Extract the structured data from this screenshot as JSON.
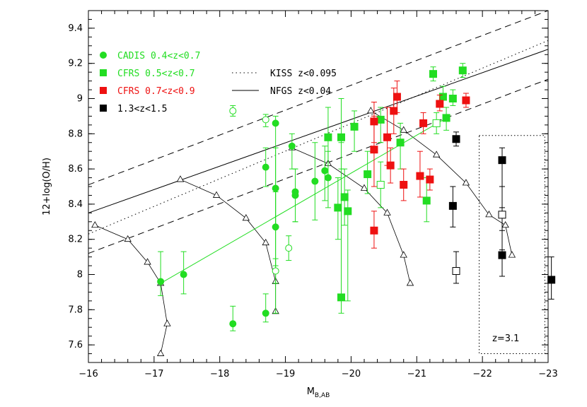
{
  "chart_data": {
    "type": "scatter",
    "xlabel": "M",
    "xlabel_sub": "B,AB",
    "ylabel": "12+log(O/H)",
    "xlim": [
      -16,
      -23
    ],
    "ylim": [
      7.5,
      9.5
    ],
    "xticks": [
      -16,
      -17,
      -18,
      -19,
      -20,
      -21,
      -22,
      -23
    ],
    "xtick_labels": [
      "−16",
      "−17",
      "−18",
      "−19",
      "−20",
      "−21",
      "−22",
      "−23"
    ],
    "yticks": [
      7.6,
      7.8,
      8,
      8.2,
      8.4,
      8.6,
      8.8,
      9,
      9.2,
      9.4
    ],
    "ytick_labels": [
      "7.6",
      "7.8",
      "8",
      "8.2",
      "8.4",
      "8.6",
      "8.8",
      "9",
      "9.2",
      "9.4"
    ],
    "colors": {
      "green": "#22dd22",
      "red": "#ee1111",
      "black": "#000000"
    },
    "legend": [
      {
        "label": "CADIS  0.4<z<0.7",
        "marker": "circle",
        "color": "#22dd22"
      },
      {
        "label": "CFRS  0.5<z<0.7",
        "marker": "square",
        "color": "#22dd22"
      },
      {
        "label": "CFRS  0.7<z<0.9",
        "marker": "square",
        "color": "#ee1111"
      },
      {
        "label": "1.3<z<1.5",
        "marker": "square",
        "color": "#000000"
      }
    ],
    "line_legend": [
      {
        "label": "KISS  z<0.095",
        "style": "dotted"
      },
      {
        "label": "NFGS  z<0.04",
        "style": "solid"
      }
    ],
    "annotation": "z=3.1",
    "reference_lines": [
      {
        "name": "NFGS",
        "style": "solid",
        "x": [
          -16,
          -23
        ],
        "y": [
          8.35,
          9.28
        ]
      },
      {
        "name": "KISS",
        "style": "dotted",
        "x": [
          -16,
          -23
        ],
        "y": [
          8.23,
          9.33
        ]
      },
      {
        "name": "upper-envelope",
        "style": "dashed",
        "x": [
          -16,
          -23
        ],
        "y": [
          8.51,
          9.5
        ]
      },
      {
        "name": "lower-envelope",
        "style": "dashed",
        "x": [
          -16,
          -23
        ],
        "y": [
          8.12,
          9.11
        ]
      }
    ],
    "fit_line": {
      "x": [
        -17.1,
        -21.5
      ],
      "y": [
        7.95,
        8.9
      ],
      "color": "#22dd22"
    },
    "model_tracks": [
      {
        "x": [
          -16.1,
          -16.6,
          -16.9,
          -17.1,
          -17.2,
          -17.1
        ],
        "y": [
          8.28,
          8.2,
          8.07,
          7.95,
          7.72,
          7.55
        ]
      },
      {
        "x": [
          -17.4,
          -17.95,
          -18.4,
          -18.7,
          -18.85,
          -18.85
        ],
        "y": [
          8.54,
          8.45,
          8.32,
          8.18,
          7.96,
          7.79
        ]
      },
      {
        "x": [
          -19.1,
          -19.65,
          -20.2,
          -20.55,
          -20.8,
          -20.9
        ],
        "y": [
          8.72,
          8.63,
          8.49,
          8.35,
          8.11,
          7.95
        ]
      },
      {
        "x": [
          -20.3,
          -20.8,
          -21.3,
          -21.75,
          -22.1,
          -22.35,
          -22.45
        ],
        "y": [
          8.93,
          8.82,
          8.68,
          8.52,
          8.34,
          8.28,
          8.11
        ]
      }
    ],
    "series": [
      {
        "name": "CADIS filled",
        "marker": "circle",
        "filled": true,
        "color": "#22dd22",
        "points": [
          {
            "x": -17.1,
            "y": 7.96,
            "lo": 7.88,
            "hi": 8.13
          },
          {
            "x": -17.45,
            "y": 8.0,
            "lo": 7.89,
            "hi": 8.13
          },
          {
            "x": -18.2,
            "y": 7.72,
            "lo": 7.68,
            "hi": 7.82
          },
          {
            "x": -18.7,
            "y": 7.78,
            "lo": 7.73,
            "hi": 7.89
          },
          {
            "x": -18.7,
            "y": 8.61,
            "lo": 8.5,
            "hi": 8.72
          },
          {
            "x": -18.85,
            "y": 8.86,
            "lo": 7.78,
            "hi": 8.9
          },
          {
            "x": -18.85,
            "y": 8.49,
            "lo": 8.27,
            "hi": 8.72
          },
          {
            "x": -18.85,
            "y": 8.27,
            "lo": 8.05,
            "hi": 8.47
          },
          {
            "x": -19.1,
            "y": 8.73,
            "lo": 8.6,
            "hi": 8.8
          },
          {
            "x": -19.15,
            "y": 8.47,
            "lo": 8.3,
            "hi": 8.6
          },
          {
            "x": -19.15,
            "y": 8.45,
            "lo": 8.3,
            "hi": 8.6
          },
          {
            "x": -19.45,
            "y": 8.53,
            "lo": 8.31,
            "hi": 8.75
          },
          {
            "x": -19.6,
            "y": 8.59,
            "lo": 8.42,
            "hi": 8.73
          },
          {
            "x": -19.65,
            "y": 8.55,
            "lo": 8.38,
            "hi": 8.7
          }
        ]
      },
      {
        "name": "CADIS open",
        "marker": "circle",
        "filled": false,
        "color": "#22dd22",
        "points": [
          {
            "x": -18.2,
            "y": 8.93,
            "lo": 8.9,
            "hi": 8.96
          },
          {
            "x": -18.7,
            "y": 8.88,
            "lo": 8.84,
            "hi": 8.91
          },
          {
            "x": -18.85,
            "y": 8.02,
            "lo": 7.95,
            "hi": 8.09
          },
          {
            "x": -19.05,
            "y": 8.15,
            "lo": 8.08,
            "hi": 8.22
          }
        ]
      },
      {
        "name": "CFRS 0.5<z<0.7",
        "marker": "square",
        "filled": true,
        "color": "#22dd22",
        "points": [
          {
            "x": -19.65,
            "y": 8.78,
            "lo": 8.55,
            "hi": 8.95
          },
          {
            "x": -19.8,
            "y": 8.38,
            "lo": 8.2,
            "hi": 8.55
          },
          {
            "x": -19.85,
            "y": 8.78,
            "lo": 8.6,
            "hi": 9.0
          },
          {
            "x": -19.85,
            "y": 7.87,
            "lo": 7.78,
            "hi": 8.75
          },
          {
            "x": -19.9,
            "y": 8.44,
            "lo": 8.28,
            "hi": 8.6
          },
          {
            "x": -19.95,
            "y": 8.36,
            "lo": 7.85,
            "hi": 8.48
          },
          {
            "x": -20.05,
            "y": 8.84,
            "lo": 8.7,
            "hi": 8.93
          },
          {
            "x": -20.25,
            "y": 8.57,
            "lo": 8.46,
            "hi": 8.7
          },
          {
            "x": -20.45,
            "y": 8.88,
            "lo": 8.75,
            "hi": 8.95
          },
          {
            "x": -20.75,
            "y": 8.75,
            "lo": 8.6,
            "hi": 8.86
          },
          {
            "x": -21.15,
            "y": 8.42,
            "lo": 8.3,
            "hi": 8.55
          },
          {
            "x": -21.25,
            "y": 9.14,
            "lo": 9.1,
            "hi": 9.18
          },
          {
            "x": -21.4,
            "y": 9.01,
            "lo": 8.95,
            "hi": 9.07
          },
          {
            "x": -21.45,
            "y": 8.89,
            "lo": 8.82,
            "hi": 8.95
          },
          {
            "x": -21.55,
            "y": 9.0,
            "lo": 8.96,
            "hi": 9.05
          },
          {
            "x": -21.7,
            "y": 9.16,
            "lo": 9.12,
            "hi": 9.2
          }
        ]
      },
      {
        "name": "CFRS 0.5<z<0.7 open",
        "marker": "square",
        "filled": false,
        "color": "#22dd22",
        "points": [
          {
            "x": -20.45,
            "y": 8.51,
            "lo": 8.38,
            "hi": 8.64
          },
          {
            "x": -21.3,
            "y": 8.86,
            "lo": 8.8,
            "hi": 8.92
          }
        ]
      },
      {
        "name": "CFRS 0.7<z<0.9",
        "marker": "square",
        "filled": true,
        "color": "#ee1111",
        "points": [
          {
            "x": -20.35,
            "y": 8.87,
            "lo": 8.75,
            "hi": 8.98
          },
          {
            "x": -20.35,
            "y": 8.71,
            "lo": 8.5,
            "hi": 8.9
          },
          {
            "x": -20.35,
            "y": 8.25,
            "lo": 8.15,
            "hi": 8.36
          },
          {
            "x": -20.55,
            "y": 8.78,
            "lo": 8.62,
            "hi": 8.95
          },
          {
            "x": -20.6,
            "y": 8.62,
            "lo": 8.52,
            "hi": 8.72
          },
          {
            "x": -20.65,
            "y": 8.93,
            "lo": 8.8,
            "hi": 9.06
          },
          {
            "x": -20.7,
            "y": 9.01,
            "lo": 8.92,
            "hi": 9.1
          },
          {
            "x": -20.8,
            "y": 8.51,
            "lo": 8.42,
            "hi": 8.6
          },
          {
            "x": -21.05,
            "y": 8.56,
            "lo": 8.44,
            "hi": 8.7
          },
          {
            "x": -21.1,
            "y": 8.86,
            "lo": 8.8,
            "hi": 8.92
          },
          {
            "x": -21.2,
            "y": 8.54,
            "lo": 8.48,
            "hi": 8.6
          },
          {
            "x": -21.35,
            "y": 8.97,
            "lo": 8.93,
            "hi": 9.02
          },
          {
            "x": -21.75,
            "y": 8.99,
            "lo": 8.95,
            "hi": 9.03
          }
        ]
      },
      {
        "name": "1.3<z<1.5",
        "marker": "square",
        "filled": true,
        "color": "#000000",
        "points": [
          {
            "x": -21.55,
            "y": 8.39,
            "lo": 8.27,
            "hi": 8.5
          },
          {
            "x": -21.6,
            "y": 8.77,
            "lo": 8.73,
            "hi": 8.81
          },
          {
            "x": -22.3,
            "y": 8.65,
            "lo": 8.38,
            "hi": 8.72
          },
          {
            "x": -22.3,
            "y": 8.11,
            "lo": 7.99,
            "hi": 8.25
          },
          {
            "x": -23.05,
            "y": 7.97,
            "lo": 7.86,
            "hi": 8.1
          }
        ]
      },
      {
        "name": "1.3<z<1.5 open",
        "marker": "square",
        "filled": false,
        "color": "#000000",
        "points": [
          {
            "x": -21.6,
            "y": 8.02,
            "lo": 7.95,
            "hi": 8.13
          },
          {
            "x": -22.3,
            "y": 8.34,
            "lo": 8.14,
            "hi": 8.5
          }
        ]
      }
    ],
    "highlight_box": {
      "x": [
        -21.95,
        -22.95
      ],
      "y": [
        7.55,
        8.79
      ]
    }
  }
}
